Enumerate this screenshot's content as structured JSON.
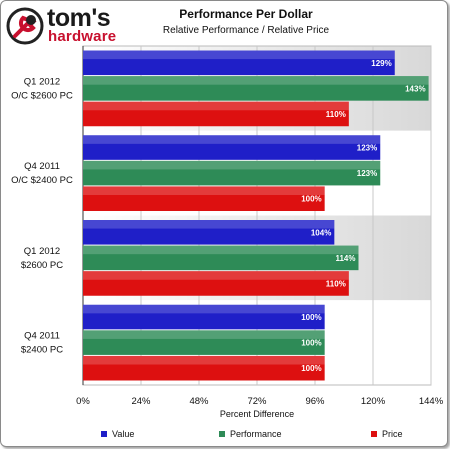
{
  "logo": {
    "name": "tom's",
    "sub": "hardware"
  },
  "chart_data": {
    "type": "bar",
    "orientation": "horizontal",
    "title": "Performance Per Dollar",
    "subtitle": "Relative Performance / Relative Price",
    "xlabel": "Percent Difference",
    "ylabel": "",
    "xlim": [
      0,
      144
    ],
    "x_ticks": [
      "0%",
      "24%",
      "48%",
      "72%",
      "96%",
      "120%",
      "144%"
    ],
    "grid": true,
    "legend_position": "bottom",
    "categories": [
      [
        "Q1 2012",
        "O/C $2600 PC"
      ],
      [
        "Q4 2011",
        "O/C $2400 PC"
      ],
      [
        "Q1 2012",
        "$2600 PC"
      ],
      [
        "Q4 2011",
        "$2400 PC"
      ]
    ],
    "series": [
      {
        "name": "Value",
        "color": "#1f1fc8",
        "values": [
          129,
          123,
          104,
          100
        ],
        "labels": [
          "129%",
          "123%",
          "104%",
          "100%"
        ]
      },
      {
        "name": "Performance",
        "color": "#2e8b57",
        "values": [
          143,
          123,
          114,
          100
        ],
        "labels": [
          "143%",
          "123%",
          "114%",
          "100%"
        ]
      },
      {
        "name": "Price",
        "color": "#dd1010",
        "values": [
          110,
          100,
          110,
          100
        ],
        "labels": [
          "110%",
          "100%",
          "110%",
          "100%"
        ]
      }
    ]
  }
}
